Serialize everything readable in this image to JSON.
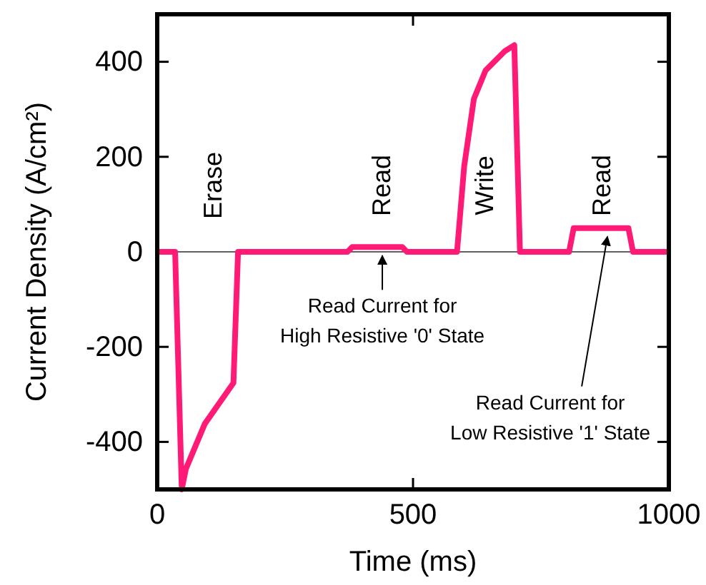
{
  "chart_data": {
    "type": "line",
    "xlabel": "Time (ms)",
    "ylabel": "Current Density (A/cm²)",
    "xlim": [
      0,
      1000
    ],
    "ylim": [
      -500,
      500
    ],
    "xticks": [
      0,
      500,
      1000
    ],
    "yticks": [
      -400,
      -200,
      0,
      200,
      400
    ],
    "grid": false,
    "marker": "none",
    "line_style": "solid",
    "series": [
      {
        "color": "#ff1a75",
        "x": [
          0,
          35,
          48,
          56,
          93,
          149,
          158,
          372,
          381,
          479,
          488,
          586,
          600,
          619,
          642,
          679,
          698,
          709,
          805,
          814,
          921,
          930,
          1000
        ],
        "values": [
          0,
          0,
          -500,
          -457,
          -362,
          -276,
          0,
          0,
          10,
          10,
          0,
          0,
          180,
          322,
          382,
          422,
          435,
          0,
          0,
          50,
          50,
          0,
          0
        ]
      }
    ],
    "ref_lines": [
      {
        "axis": "y",
        "value": 0,
        "color": "#606060"
      }
    ],
    "annotations": [
      "Erase",
      "Read",
      "Write",
      "Read",
      {
        "text": "Read Current for\nHigh Resistive '0' State",
        "x": 440,
        "y": 10
      },
      {
        "text": "Read Current for\nLow Resistive '1' State",
        "x": 880,
        "y": 50
      }
    ]
  }
}
